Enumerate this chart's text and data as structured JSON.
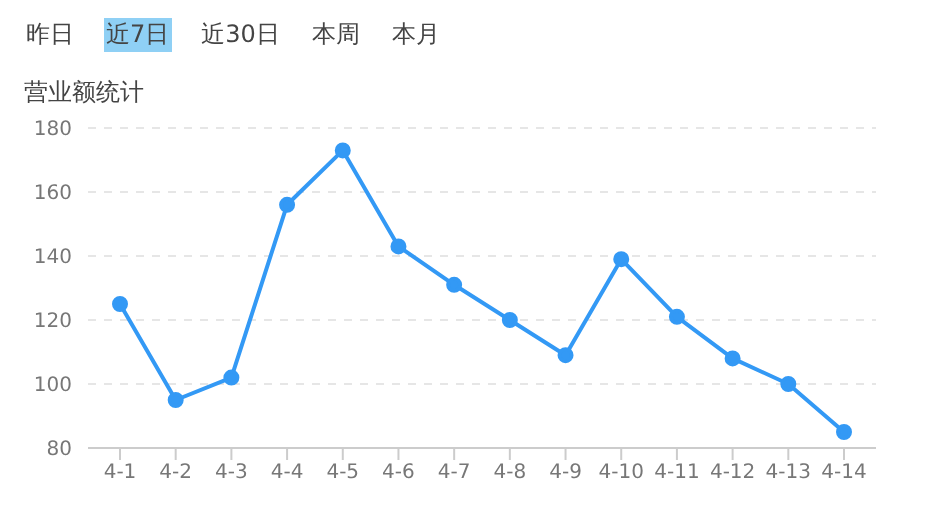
{
  "chart_data": {
    "type": "line",
    "title": "营业额统计",
    "annotations": [
      "昨日",
      "近7日",
      "近30日",
      "本周",
      "本月"
    ],
    "categories": [
      "4-1",
      "4-2",
      "4-3",
      "4-4",
      "4-5",
      "4-6",
      "4-7",
      "4-8",
      "4-9",
      "4-10",
      "4-11",
      "4-12",
      "4-13",
      "4-14"
    ],
    "series": [
      {
        "color": "#3399f5",
        "values": [
          125,
          95,
          102,
          156,
          173,
          143,
          131,
          120,
          109,
          139,
          121,
          108,
          100,
          85
        ]
      }
    ],
    "ylim": [
      80,
      180
    ],
    "yticks": [
      80,
      100,
      120,
      140,
      160,
      180
    ],
    "grid": "y",
    "marker": "circle",
    "line_style": "solid",
    "legend": false
  }
}
